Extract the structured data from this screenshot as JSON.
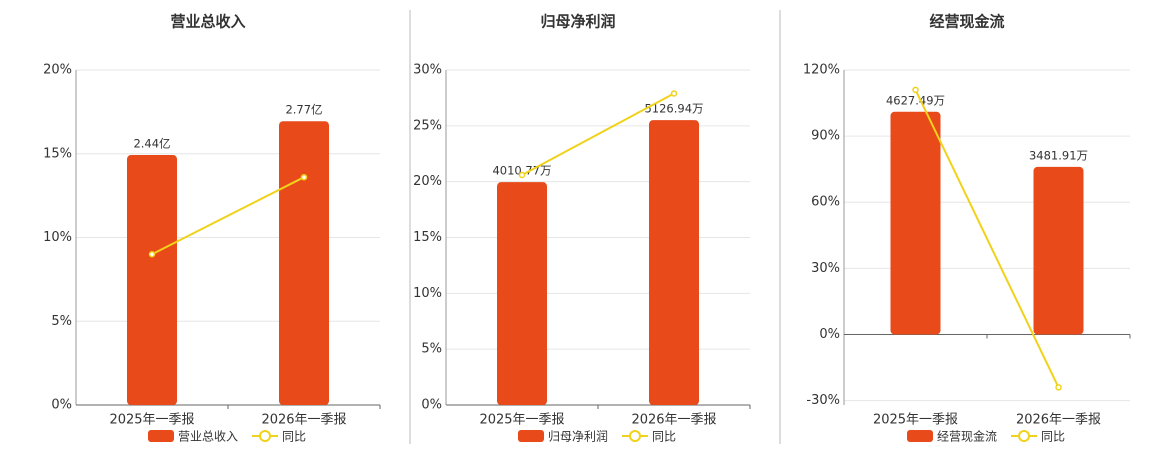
{
  "chart_data": [
    {
      "type": "bar-line",
      "title": "营业总收入",
      "categories": [
        "2025年一季报",
        "2026年一季报"
      ],
      "series": [
        {
          "name": "营业总收入",
          "type": "bar",
          "color": "#e84a1a",
          "axis": "y2",
          "values": [
            2.44,
            2.77
          ],
          "value_labels": [
            "2.44亿",
            "2.77亿"
          ]
        },
        {
          "name": "同比",
          "type": "line",
          "color": "#f0d21a",
          "values": [
            9,
            13.6
          ]
        }
      ],
      "ylim": [
        0,
        20
      ],
      "yticks": [
        {
          "value": 0,
          "label": "0%"
        },
        {
          "value": 5,
          "label": "5%"
        },
        {
          "value": 10,
          "label": "10%"
        },
        {
          "value": 15,
          "label": "15%"
        },
        {
          "value": 20,
          "label": "20%"
        }
      ],
      "y2lim": [
        0,
        3.27
      ],
      "grid": true
    },
    {
      "type": "bar-line",
      "title": "归母净利润",
      "categories": [
        "2025年一季报",
        "2026年一季报"
      ],
      "series": [
        {
          "name": "归母净利润",
          "type": "bar",
          "color": "#e84a1a",
          "axis": "y2",
          "values": [
            4010.77,
            5126.94
          ],
          "value_labels": [
            "4010.77万",
            "5126.94万"
          ]
        },
        {
          "name": "同比",
          "type": "line",
          "color": "#f0d21a",
          "values": [
            20.6,
            27.9
          ]
        }
      ],
      "ylim": [
        0,
        30
      ],
      "yticks": [
        {
          "value": 0,
          "label": "0%"
        },
        {
          "value": 5,
          "label": "5%"
        },
        {
          "value": 10,
          "label": "10%"
        },
        {
          "value": 15,
          "label": "15%"
        },
        {
          "value": 20,
          "label": "20%"
        },
        {
          "value": 25,
          "label": "25%"
        },
        {
          "value": 30,
          "label": "30%"
        }
      ],
      "y2lim": [
        0,
        6030
      ],
      "grid": true
    },
    {
      "type": "bar-line",
      "title": "经营现金流",
      "categories": [
        "2025年一季报",
        "2026年一季报"
      ],
      "series": [
        {
          "name": "经营现金流",
          "type": "bar",
          "color": "#e84a1a",
          "axis": "y2",
          "values": [
            4627.49,
            3481.91
          ],
          "value_labels": [
            "4627.49万",
            "3481.91万"
          ]
        },
        {
          "name": "同比",
          "type": "line",
          "color": "#f0d21a",
          "values": [
            111,
            -24
          ]
        }
      ],
      "ylim": [
        -32,
        120
      ],
      "yticks": [
        {
          "value": -30,
          "label": "-30%"
        },
        {
          "value": 0,
          "label": "0%"
        },
        {
          "value": 30,
          "label": "30%"
        },
        {
          "value": 60,
          "label": "60%"
        },
        {
          "value": 90,
          "label": "90%"
        },
        {
          "value": 120,
          "label": "120%"
        }
      ],
      "y2lim": [
        -1466,
        5496
      ],
      "grid": true
    }
  ]
}
